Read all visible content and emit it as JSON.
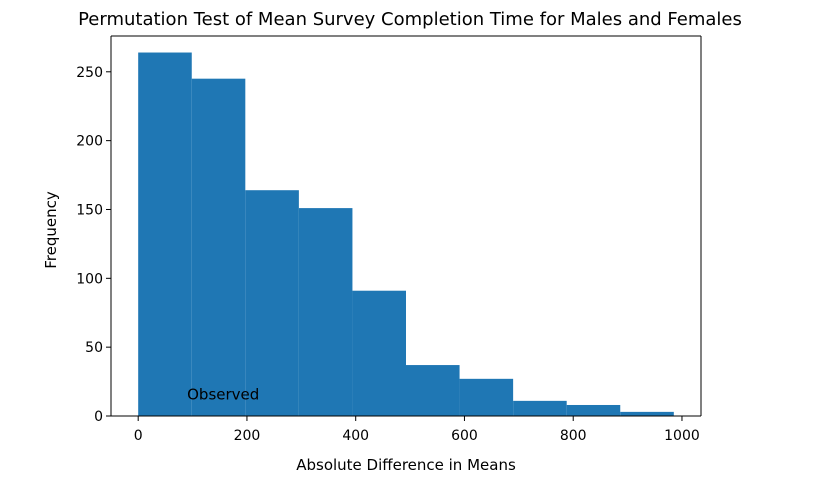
{
  "chart_data": {
    "type": "bar",
    "title": "Permutation Test of Mean Survey Completion Time for Males and Females",
    "xlabel": "Absolute Difference in Means",
    "ylabel": "Frequency",
    "xlim": [
      -50,
      1035
    ],
    "ylim": [
      0,
      276
    ],
    "x_ticks": [
      0,
      200,
      400,
      600,
      800,
      1000
    ],
    "x_tick_labels": [
      "0",
      "200",
      "400",
      "600",
      "800",
      "1000"
    ],
    "y_ticks": [
      0,
      50,
      100,
      150,
      200,
      250
    ],
    "y_tick_labels": [
      "0",
      "50",
      "100",
      "150",
      "200",
      "250"
    ],
    "bins": [
      [
        0,
        98.5
      ],
      [
        98.5,
        197
      ],
      [
        197,
        295.5
      ],
      [
        295.5,
        394
      ],
      [
        394,
        492.5
      ],
      [
        492.5,
        591
      ],
      [
        591,
        689.5
      ],
      [
        689.5,
        788
      ],
      [
        788,
        886.5
      ],
      [
        886.5,
        985
      ]
    ],
    "values": [
      264,
      245,
      164,
      151,
      91,
      37,
      27,
      11,
      8,
      3
    ],
    "bar_color": "#1f77b4",
    "grid": false,
    "annotations": [
      {
        "text": "Observed",
        "x": 90,
        "y": 12
      }
    ]
  }
}
